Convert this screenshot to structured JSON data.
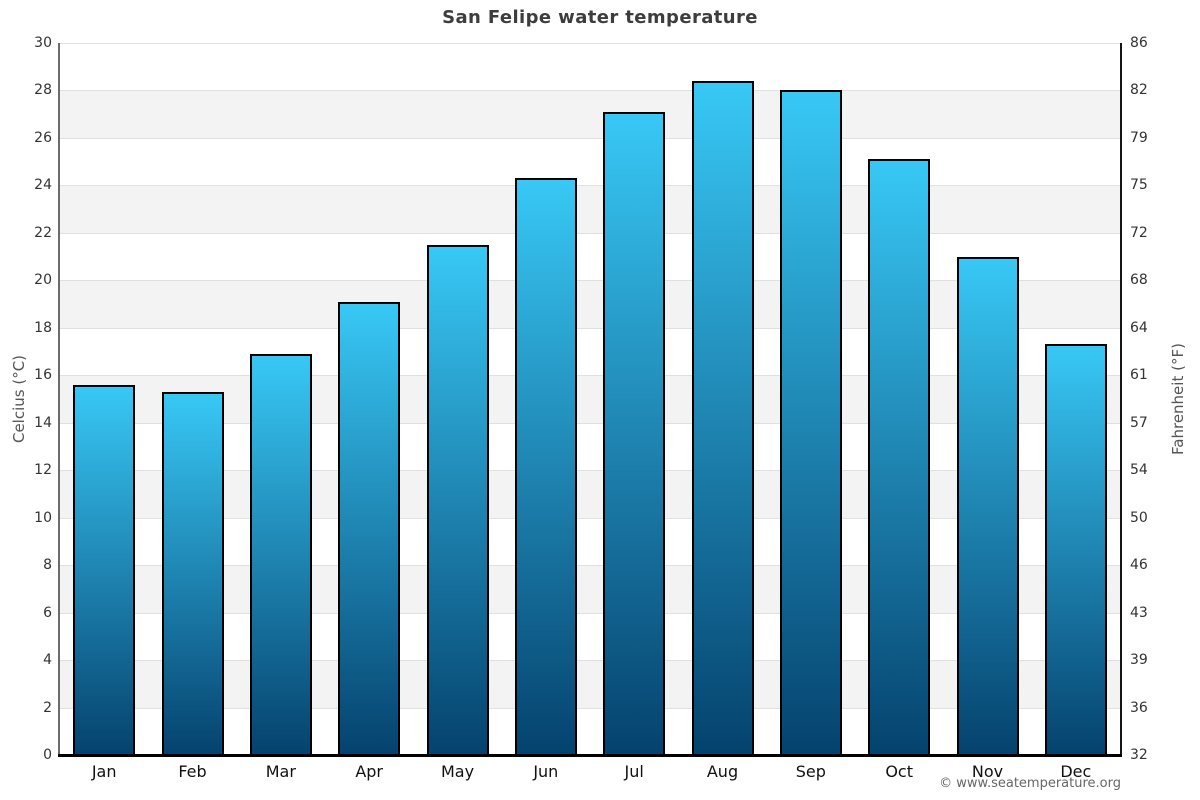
{
  "title": "San Felipe water temperature",
  "footer_credit": "© www.seatemperature.org",
  "axes": {
    "left_label": "Celcius (°C)",
    "right_label": "Fahrenheit (°F)"
  },
  "chart_data": {
    "type": "bar",
    "title": "San Felipe water temperature",
    "categories": [
      "Jan",
      "Feb",
      "Mar",
      "Apr",
      "May",
      "Jun",
      "Jul",
      "Aug",
      "Sep",
      "Oct",
      "Nov",
      "Dec"
    ],
    "values": [
      15.6,
      15.3,
      16.9,
      19.1,
      21.5,
      24.3,
      27.1,
      28.4,
      28.0,
      25.1,
      21.0,
      17.3
    ],
    "unit": "°C",
    "xlabel": "",
    "ylabel": "Celcius (°C)",
    "ylabel_right": "Fahrenheit (°F)",
    "ylim": [
      0,
      30
    ],
    "ytick_step": 2,
    "yticks_celsius": [
      0,
      2,
      4,
      6,
      8,
      10,
      12,
      14,
      16,
      18,
      20,
      22,
      24,
      26,
      28,
      30
    ],
    "yticks_fahrenheit_labels": [
      "32",
      "36",
      "39",
      "43",
      "46",
      "50",
      "54",
      "57",
      "61",
      "64",
      "68",
      "72",
      "75",
      "79",
      "82",
      "86"
    ],
    "grid": "horizontal gridlines every 2°C with alternating white/light-gray bands",
    "legend": "none",
    "colors": {
      "bar_gradient_top": "#38c8f5",
      "bar_gradient_bottom": "#05426e",
      "bar_border": "#000000",
      "band_fill": "#f3f3f3",
      "gridline": "#e0e0e0",
      "title_text": "#3d3d3d",
      "tick_text": "#333333",
      "axis_title_text": "#555555",
      "footer_text": "#666666"
    }
  }
}
